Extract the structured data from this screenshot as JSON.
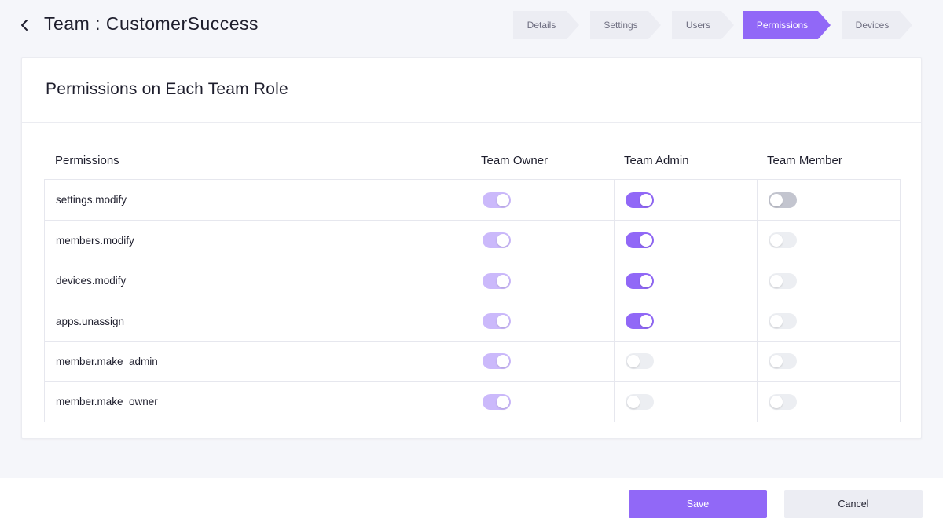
{
  "header": {
    "title": "Team : CustomerSuccess",
    "back_icon": "chevron-left-icon"
  },
  "steps": [
    {
      "label": "Details",
      "active": false
    },
    {
      "label": "Settings",
      "active": false
    },
    {
      "label": "Users",
      "active": false
    },
    {
      "label": "Permissions",
      "active": true
    },
    {
      "label": "Devices",
      "active": false
    }
  ],
  "card": {
    "title": "Permissions on Each Team Role"
  },
  "table": {
    "headers": [
      "Permissions",
      "Team Owner",
      "Team Admin",
      "Team Member"
    ],
    "rows": [
      {
        "permission": "settings.modify",
        "owner": "on-disabled",
        "admin": "on",
        "member": "off"
      },
      {
        "permission": "members.modify",
        "owner": "on-disabled",
        "admin": "on",
        "member": "off-disabled"
      },
      {
        "permission": "devices.modify",
        "owner": "on-disabled",
        "admin": "on",
        "member": "off-disabled"
      },
      {
        "permission": "apps.unassign",
        "owner": "on-disabled",
        "admin": "on",
        "member": "off-disabled"
      },
      {
        "permission": "member.make_admin",
        "owner": "on-disabled",
        "admin": "off-disabled",
        "member": "off-disabled"
      },
      {
        "permission": "member.make_owner",
        "owner": "on-disabled",
        "admin": "off-disabled",
        "member": "off-disabled"
      }
    ]
  },
  "footer": {
    "save_label": "Save",
    "cancel_label": "Cancel"
  },
  "colors": {
    "accent": "#9168f7",
    "accent_disabled": "#cbb9fb",
    "toggle_off": "#c3c5cf",
    "toggle_off_disabled": "#eceef2"
  }
}
